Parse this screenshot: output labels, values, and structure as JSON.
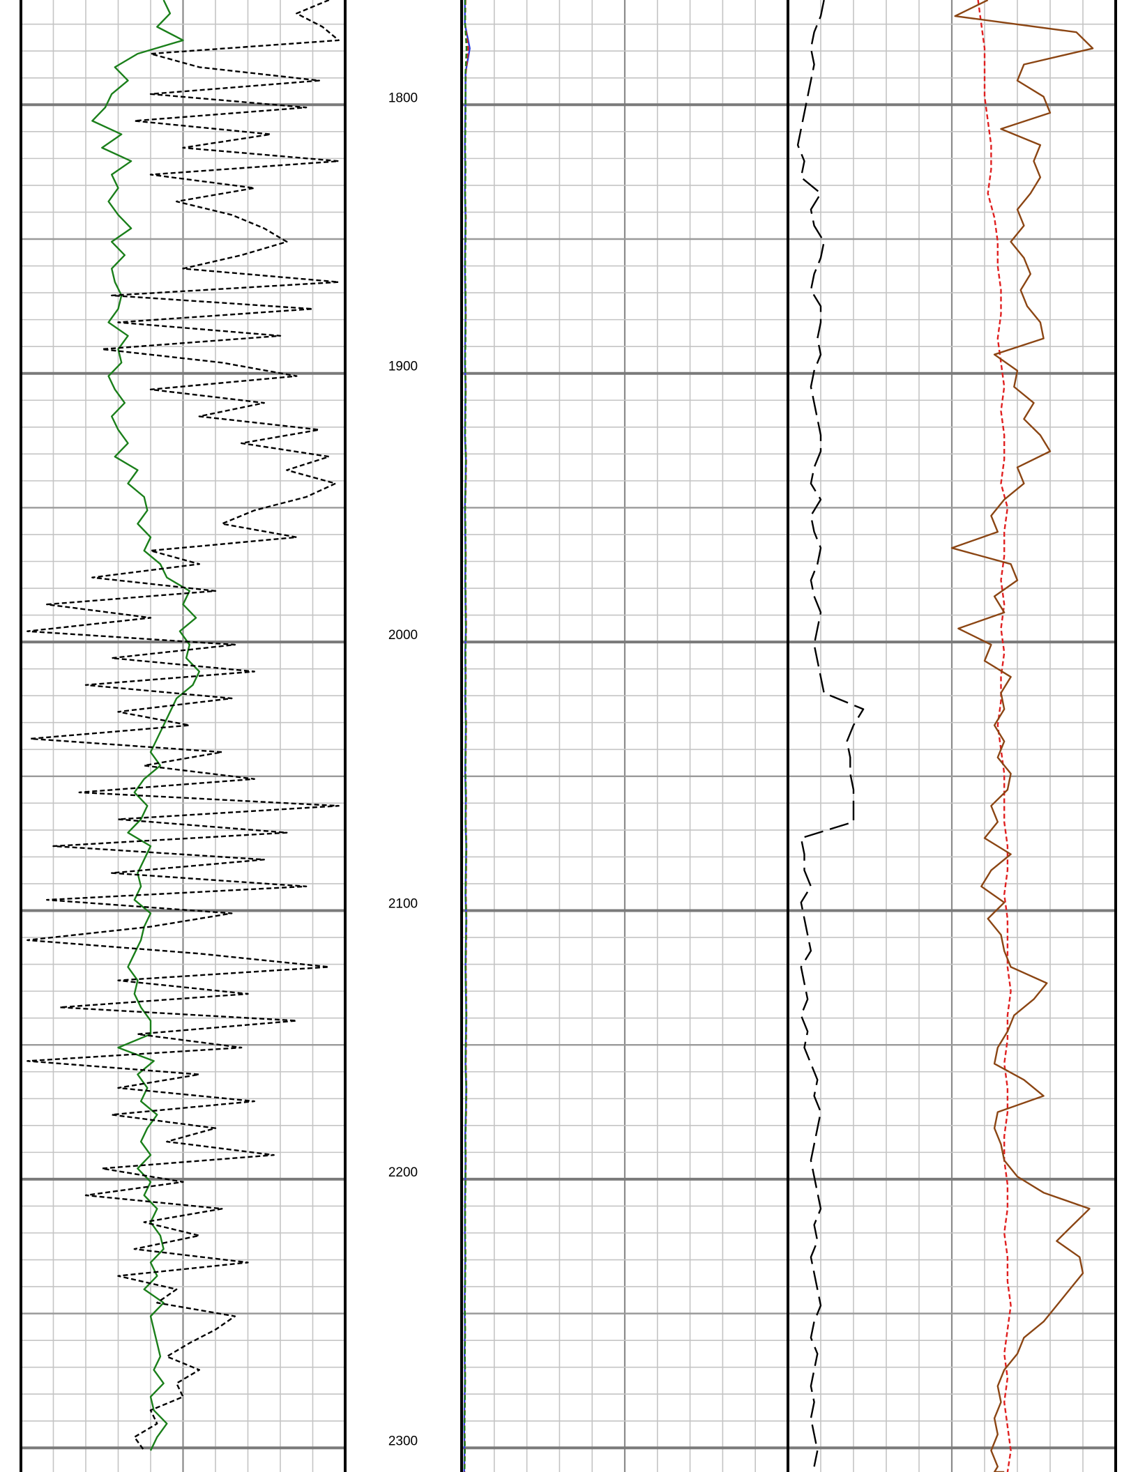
{
  "chart_data": {
    "type": "line",
    "title": "",
    "depth_axis": {
      "range": [
        1761,
        2309
      ],
      "ticks": [
        1800,
        1900,
        2000,
        2100,
        2200,
        2300
      ],
      "tick_labels": [
        "1800",
        "1900",
        "2000",
        "2100",
        "2200",
        "2300"
      ],
      "major_interval": 100,
      "minor_interval": 10
    },
    "grid": true,
    "tracks": [
      {
        "name": "",
        "grid_divisions": 10,
        "series": [
          {
            "name": "",
            "color": "#1a7f1a",
            "style": "solid",
            "x_fraction": [
              0.44,
              0.46,
              0.42,
              0.5,
              0.36,
              0.29,
              0.33,
              0.28,
              0.26,
              0.22,
              0.31,
              0.25,
              0.34,
              0.28,
              0.3,
              0.27,
              0.3,
              0.34,
              0.28,
              0.32,
              0.28,
              0.29,
              0.31,
              0.3,
              0.27,
              0.33,
              0.3,
              0.31,
              0.27,
              0.29,
              0.32,
              0.28,
              0.3,
              0.33,
              0.29,
              0.36,
              0.33,
              0.38,
              0.39,
              0.36,
              0.4,
              0.38,
              0.43,
              0.45,
              0.52,
              0.5,
              0.54,
              0.49,
              0.52,
              0.51,
              0.55,
              0.53,
              0.48,
              0.46,
              0.44,
              0.42,
              0.4,
              0.43,
              0.38,
              0.35,
              0.39,
              0.37,
              0.33,
              0.4,
              0.38,
              0.36,
              0.37,
              0.35,
              0.4,
              0.38,
              0.37,
              0.35,
              0.33,
              0.36,
              0.35,
              0.37,
              0.4,
              0.4,
              0.3,
              0.41,
              0.36,
              0.39,
              0.37,
              0.42,
              0.39,
              0.37,
              0.4,
              0.36,
              0.4,
              0.38,
              0.42,
              0.4,
              0.43,
              0.44,
              0.4,
              0.42,
              0.38,
              0.44,
              0.4,
              0.41,
              0.42,
              0.43,
              0.41,
              0.44,
              0.4,
              0.41,
              0.45,
              0.42,
              0.4
            ],
            "depth_step": 5
          },
          {
            "name": "",
            "color": "#000000",
            "style": "dashed",
            "x_fraction": [
              0.95,
              0.85,
              0.93,
              0.98,
              0.4,
              0.55,
              0.92,
              0.4,
              0.88,
              0.35,
              0.77,
              0.5,
              0.98,
              0.4,
              0.72,
              0.48,
              0.65,
              0.75,
              0.82,
              0.68,
              0.5,
              0.98,
              0.28,
              0.9,
              0.3,
              0.8,
              0.25,
              0.62,
              0.85,
              0.4,
              0.75,
              0.55,
              0.92,
              0.68,
              0.95,
              0.82,
              0.97,
              0.88,
              0.72,
              0.62,
              0.85,
              0.4,
              0.55,
              0.22,
              0.6,
              0.08,
              0.4,
              0.02,
              0.66,
              0.28,
              0.72,
              0.2,
              0.65,
              0.3,
              0.52,
              0.03,
              0.62,
              0.38,
              0.72,
              0.18,
              0.98,
              0.3,
              0.82,
              0.1,
              0.75,
              0.28,
              0.88,
              0.08,
              0.65,
              0.4,
              0.02,
              0.55,
              0.95,
              0.3,
              0.7,
              0.12,
              0.85,
              0.36,
              0.68,
              0.02,
              0.55,
              0.3,
              0.72,
              0.28,
              0.6,
              0.45,
              0.78,
              0.25,
              0.5,
              0.2,
              0.62,
              0.38,
              0.55,
              0.35,
              0.7,
              0.3,
              0.48,
              0.42,
              0.66,
              0.6,
              0.52,
              0.45,
              0.55,
              0.48,
              0.5,
              0.4,
              0.42,
              0.35,
              0.38
            ],
            "depth_step": 5
          }
        ]
      },
      {
        "name": "",
        "grid_divisions": 10,
        "series": [
          {
            "name": "",
            "color": "#2a3ce0",
            "style": "solid",
            "x_fraction": [
              0.01,
              0.01,
              0.025,
              0.012,
              0.012,
              0.011,
              0.01,
              0.011,
              0.01,
              0.012,
              0.011,
              0.01,
              0.011,
              0.012,
              0.011,
              0.01,
              0.012,
              0.011,
              0.01,
              0.013,
              0.012,
              0.01,
              0.011,
              0.012,
              0.011,
              0.012,
              0.013,
              0.011,
              0.012,
              0.011,
              0.013,
              0.012,
              0.011,
              0.013,
              0.012,
              0.014,
              0.013,
              0.012,
              0.014,
              0.013,
              0.012,
              0.013,
              0.014,
              0.013,
              0.012,
              0.014,
              0.013,
              0.011,
              0.012,
              0.011,
              0.01,
              0.01,
              0.011,
              0.01,
              0.009,
              0.01,
              0.009,
              0.01,
              0.009,
              0.008,
              0.009,
              0.008
            ],
            "depth_step": 9
          },
          {
            "name": "",
            "color": "#e02020",
            "style": "dashed",
            "x_fraction": [
              0.012,
              0.011,
              0.02,
              0.013,
              0.012,
              0.012,
              0.011,
              0.012,
              0.011,
              0.013,
              0.012,
              0.011,
              0.012,
              0.013,
              0.012,
              0.011,
              0.013,
              0.012,
              0.011,
              0.014,
              0.013,
              0.011,
              0.012,
              0.013,
              0.012,
              0.013,
              0.014,
              0.012,
              0.013,
              0.012,
              0.014,
              0.013,
              0.012,
              0.014,
              0.013,
              0.015,
              0.014,
              0.013,
              0.015,
              0.014,
              0.013,
              0.014,
              0.015,
              0.014,
              0.013,
              0.015,
              0.014,
              0.012,
              0.013,
              0.012,
              0.011,
              0.011,
              0.012,
              0.011,
              0.01,
              0.011,
              0.01,
              0.011,
              0.01,
              0.009,
              0.01,
              0.009
            ],
            "depth_step": 9
          },
          {
            "name": "",
            "color": "#1a7f1a",
            "style": "dashed",
            "x_fraction": [
              0.011,
              0.011,
              0.015,
              0.012,
              0.012,
              0.012,
              0.011,
              0.012,
              0.011,
              0.012,
              0.012,
              0.011,
              0.012,
              0.012,
              0.012,
              0.011,
              0.012,
              0.012,
              0.011,
              0.013,
              0.012,
              0.011,
              0.012,
              0.012,
              0.012,
              0.012,
              0.013,
              0.012,
              0.012,
              0.012,
              0.013,
              0.012,
              0.012,
              0.013,
              0.012,
              0.014,
              0.013,
              0.012,
              0.014,
              0.013,
              0.012,
              0.013,
              0.014,
              0.013,
              0.012,
              0.014,
              0.013,
              0.012,
              0.012,
              0.012,
              0.011,
              0.011,
              0.012,
              0.011,
              0.01,
              0.011,
              0.01,
              0.011,
              0.01,
              0.009,
              0.01,
              0.009
            ],
            "depth_step": 9
          }
        ]
      },
      {
        "name": "",
        "grid_divisions": 10,
        "series": [
          {
            "name": "",
            "color": "#000000",
            "style": "long-dashed",
            "x_fraction": [
              0.11,
              0.1,
              0.08,
              0.07,
              0.08,
              0.07,
              0.06,
              0.05,
              0.04,
              0.03,
              0.05,
              0.04,
              0.1,
              0.07,
              0.08,
              0.11,
              0.1,
              0.08,
              0.07,
              0.1,
              0.1,
              0.09,
              0.1,
              0.08,
              0.07,
              0.08,
              0.09,
              0.1,
              0.1,
              0.08,
              0.07,
              0.1,
              0.07,
              0.08,
              0.1,
              0.09,
              0.07,
              0.08,
              0.1,
              0.09,
              0.08,
              0.09,
              0.1,
              0.11,
              0.23,
              0.2,
              0.18,
              0.19,
              0.19,
              0.2,
              0.2,
              0.2,
              0.04,
              0.05,
              0.05,
              0.07,
              0.04,
              0.05,
              0.06,
              0.07,
              0.04,
              0.05,
              0.06,
              0.04,
              0.06,
              0.05,
              0.07,
              0.09,
              0.08,
              0.1,
              0.09,
              0.08,
              0.07,
              0.08,
              0.09,
              0.1,
              0.08,
              0.09,
              0.07,
              0.08,
              0.09,
              0.1,
              0.08,
              0.07,
              0.09,
              0.08,
              0.07,
              0.08,
              0.07,
              0.08,
              0.09,
              0.08
            ],
            "depth_step": 6
          },
          {
            "name": "",
            "color": "#e02020",
            "style": "dashed",
            "x_fraction": [
              0.58,
              0.59,
              0.6,
              0.6,
              0.6,
              0.61,
              0.62,
              0.62,
              0.61,
              0.63,
              0.64,
              0.64,
              0.65,
              0.65,
              0.64,
              0.65,
              0.66,
              0.65,
              0.66,
              0.66,
              0.65,
              0.67,
              0.66,
              0.66,
              0.65,
              0.66,
              0.65,
              0.66,
              0.65,
              0.65,
              0.64,
              0.65,
              0.66,
              0.66,
              0.66,
              0.67,
              0.67,
              0.66,
              0.67,
              0.67,
              0.67,
              0.68,
              0.67,
              0.67,
              0.66,
              0.67,
              0.67,
              0.66,
              0.66,
              0.67,
              0.67,
              0.66,
              0.67,
              0.67,
              0.68,
              0.67,
              0.66,
              0.67,
              0.66,
              0.67,
              0.68,
              0.67
            ],
            "depth_step": 9
          },
          {
            "name": "",
            "color": "#8b4513",
            "style": "solid",
            "x_fraction": [
              0.61,
              0.51,
              0.88,
              0.93,
              0.72,
              0.7,
              0.78,
              0.8,
              0.65,
              0.77,
              0.75,
              0.77,
              0.74,
              0.7,
              0.72,
              0.68,
              0.72,
              0.74,
              0.71,
              0.73,
              0.77,
              0.78,
              0.63,
              0.7,
              0.69,
              0.75,
              0.72,
              0.77,
              0.8,
              0.7,
              0.72,
              0.66,
              0.62,
              0.64,
              0.5,
              0.68,
              0.7,
              0.63,
              0.66,
              0.52,
              0.62,
              0.6,
              0.68,
              0.65,
              0.66,
              0.63,
              0.66,
              0.64,
              0.68,
              0.67,
              0.62,
              0.64,
              0.6,
              0.68,
              0.62,
              0.59,
              0.66,
              0.61,
              0.65,
              0.66,
              0.68,
              0.79,
              0.75,
              0.69,
              0.67,
              0.64,
              0.63,
              0.72,
              0.78,
              0.64,
              0.63,
              0.65,
              0.66,
              0.7,
              0.78,
              0.92,
              0.87,
              0.82,
              0.89,
              0.9,
              0.86,
              0.82,
              0.78,
              0.72,
              0.7,
              0.66,
              0.64,
              0.65,
              0.63,
              0.64,
              0.62,
              0.64,
              0.63,
              0.64,
              0.66
            ],
            "depth_step": 6
          }
        ]
      }
    ]
  }
}
